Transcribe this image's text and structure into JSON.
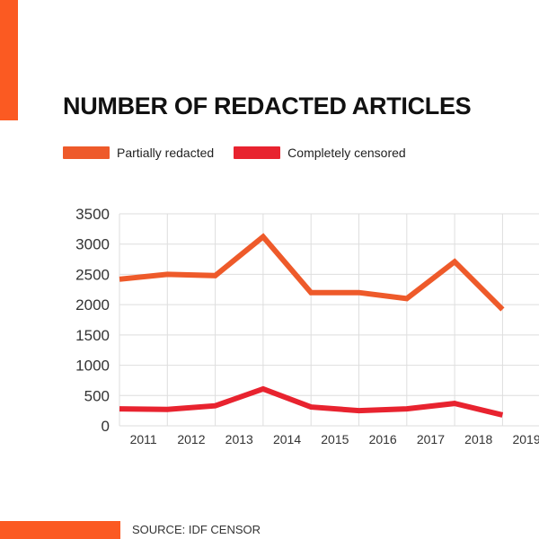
{
  "colors": {
    "accent": "#fb5a22",
    "partially_redacted": "#ee5a2a",
    "completely_censored": "#e8232f",
    "grid": "#dedede"
  },
  "title": "NUMBER OF REDACTED ARTICLES",
  "source": "SOURCE: IDF CENSOR",
  "chart_data": {
    "type": "line",
    "title": "NUMBER OF REDACTED ARTICLES",
    "xlabel": "",
    "ylabel": "",
    "x": [
      "2011",
      "2012",
      "2013",
      "2014",
      "2015",
      "2016",
      "2017",
      "2018",
      "2019"
    ],
    "series": [
      {
        "name": "Partially redacted",
        "values": [
          2420,
          2500,
          2480,
          3120,
          2200,
          2200,
          2100,
          2710,
          1920
        ]
      },
      {
        "name": "Completely censored",
        "values": [
          280,
          270,
          330,
          610,
          310,
          250,
          280,
          370,
          180
        ]
      }
    ],
    "yticks": [
      0,
      500,
      1000,
      1500,
      2000,
      2500,
      3000,
      3500
    ],
    "ylim": [
      0,
      3500
    ],
    "grid": true,
    "legend": "top-left"
  }
}
